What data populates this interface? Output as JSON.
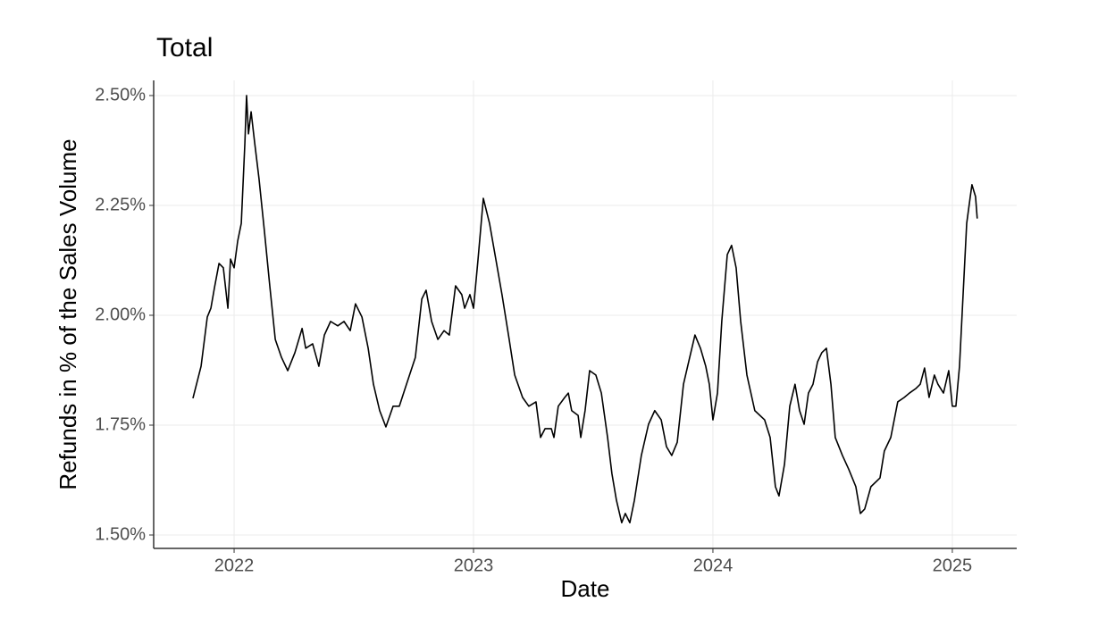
{
  "chart_data": {
    "type": "line",
    "title": "Total",
    "x_label": "Date",
    "y_label": "Refunds in % of the Sales Volume",
    "color": "#000000",
    "grid": true,
    "xlim": [
      2021.664,
      2025.269
    ],
    "xticks": [
      2022,
      2023,
      2024,
      2025
    ],
    "ylim": [
      1.4695,
      2.5345
    ],
    "yticks": [
      {
        "value": 1.5,
        "label": "1.50%"
      },
      {
        "value": 1.75,
        "label": "1.75%"
      },
      {
        "value": 2.0,
        "label": "2.00%"
      },
      {
        "value": 2.25,
        "label": "2.25%"
      },
      {
        "value": 2.5,
        "label": "2.50%"
      }
    ],
    "x": [
      2021.828,
      2021.862,
      2021.888,
      2021.903,
      2021.918,
      2021.937,
      2021.955,
      2021.974,
      2021.985,
      2022.0,
      2022.015,
      2022.03,
      2022.045,
      2022.052,
      2022.06,
      2022.071,
      2022.086,
      2022.104,
      2022.127,
      2022.149,
      2022.172,
      2022.198,
      2022.224,
      2022.254,
      2022.284,
      2022.299,
      2022.328,
      2022.354,
      2022.377,
      2022.403,
      2022.433,
      2022.459,
      2022.485,
      2022.507,
      2022.534,
      2022.56,
      2022.582,
      2022.608,
      2022.634,
      2022.664,
      2022.69,
      2022.72,
      2022.757,
      2022.784,
      2022.802,
      2022.825,
      2022.851,
      2022.877,
      2022.899,
      2022.925,
      2022.951,
      2022.963,
      2022.985,
      2023.0,
      2023.019,
      2023.041,
      2023.067,
      2023.093,
      2023.119,
      2023.149,
      2023.172,
      2023.205,
      2023.231,
      2023.261,
      2023.28,
      2023.299,
      2023.325,
      2023.336,
      2023.354,
      2023.381,
      2023.396,
      2023.41,
      2023.437,
      2023.448,
      2023.466,
      2023.485,
      2023.511,
      2023.534,
      2023.56,
      2023.578,
      2023.597,
      2023.619,
      2023.634,
      2023.653,
      2023.672,
      2023.701,
      2023.731,
      2023.757,
      2023.784,
      2023.806,
      2023.828,
      2023.851,
      2023.877,
      2023.903,
      2023.925,
      2023.948,
      2023.97,
      2023.985,
      2024.0,
      2024.019,
      2024.037,
      2024.06,
      2024.078,
      2024.097,
      2024.116,
      2024.142,
      2024.175,
      2024.216,
      2024.239,
      2024.261,
      2024.276,
      2024.299,
      2024.321,
      2024.343,
      2024.362,
      2024.381,
      2024.399,
      2024.418,
      2024.437,
      2024.455,
      2024.474,
      2024.493,
      2024.511,
      2024.541,
      2024.567,
      2024.597,
      2024.616,
      2024.634,
      2024.66,
      2024.698,
      2024.716,
      2024.743,
      2024.772,
      2024.799,
      2024.821,
      2024.847,
      2024.866,
      2024.884,
      2024.903,
      2024.925,
      2024.94,
      2024.963,
      2024.985,
      2025.0,
      2025.015,
      2025.03,
      2025.045,
      2025.06,
      2025.075,
      2025.082,
      2025.097,
      2025.104
    ],
    "values": [
      1.811,
      1.884,
      1.996,
      2.016,
      2.063,
      2.118,
      2.108,
      2.016,
      2.128,
      2.108,
      2.169,
      2.209,
      2.392,
      2.5,
      2.413,
      2.463,
      2.392,
      2.311,
      2.189,
      2.067,
      1.945,
      1.904,
      1.874,
      1.915,
      1.97,
      1.925,
      1.935,
      1.884,
      1.955,
      1.986,
      1.976,
      1.986,
      1.965,
      2.026,
      1.996,
      1.925,
      1.843,
      1.783,
      1.746,
      1.793,
      1.793,
      1.843,
      1.904,
      2.037,
      2.057,
      1.986,
      1.945,
      1.965,
      1.955,
      2.067,
      2.047,
      2.016,
      2.047,
      2.016,
      2.128,
      2.266,
      2.209,
      2.128,
      2.047,
      1.945,
      1.864,
      1.813,
      1.793,
      1.803,
      1.722,
      1.742,
      1.742,
      1.722,
      1.793,
      1.813,
      1.823,
      1.783,
      1.772,
      1.722,
      1.783,
      1.874,
      1.864,
      1.823,
      1.722,
      1.64,
      1.579,
      1.528,
      1.549,
      1.528,
      1.579,
      1.681,
      1.752,
      1.783,
      1.762,
      1.701,
      1.681,
      1.711,
      1.843,
      1.904,
      1.955,
      1.925,
      1.884,
      1.843,
      1.762,
      1.823,
      1.986,
      2.138,
      2.159,
      2.108,
      1.986,
      1.864,
      1.783,
      1.762,
      1.722,
      1.61,
      1.589,
      1.661,
      1.793,
      1.843,
      1.783,
      1.752,
      1.823,
      1.843,
      1.894,
      1.915,
      1.925,
      1.843,
      1.722,
      1.681,
      1.65,
      1.61,
      1.549,
      1.559,
      1.61,
      1.63,
      1.691,
      1.722,
      1.803,
      1.813,
      1.823,
      1.833,
      1.843,
      1.88,
      1.813,
      1.864,
      1.843,
      1.823,
      1.874,
      1.793,
      1.793,
      1.884,
      2.047,
      2.209,
      2.27,
      2.297,
      2.27,
      2.22
    ]
  }
}
